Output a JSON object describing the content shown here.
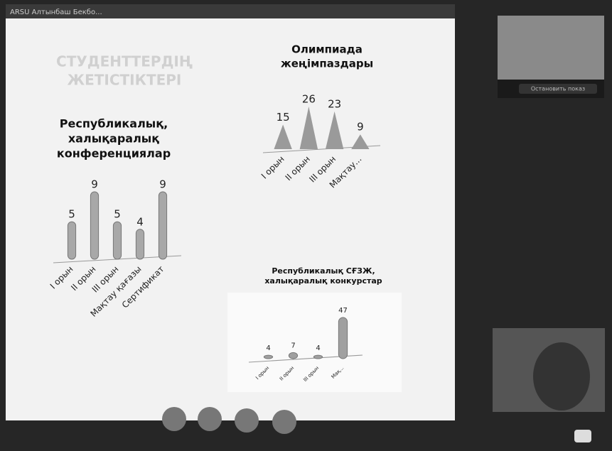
{
  "window": {
    "title": "ARSU Алтынбаш Бекбо..."
  },
  "video": {
    "button": "Остановить показ"
  },
  "slide": {
    "title_line1": "СТУДЕНТТЕРДІҢ",
    "title_line2": "ЖЕТІСТІКТЕРІ"
  },
  "charts": [
    {
      "type": "cylinder",
      "title_lines": [
        "Республикалық,",
        "халықаралық",
        "конференциялар"
      ],
      "color": "#a8a8a8",
      "categories": [
        "I орын",
        "II орын",
        "III орын",
        "Мақтау қағазы",
        "Сертификат"
      ],
      "values": [
        5,
        9,
        5,
        4,
        9
      ]
    },
    {
      "type": "cone",
      "title_lines": [
        "Олимпиада",
        "жеңімпаздары"
      ],
      "color": "#9a9a9a",
      "categories": [
        "I орын",
        "II орын",
        "III орын",
        "Мақтау..."
      ],
      "values": [
        15,
        26,
        23,
        9
      ]
    },
    {
      "type": "cylinder",
      "title_lines": [
        "Республикалық СҒЗЖ,",
        "халықаралық конкурстар"
      ],
      "color": "#a0a0a0",
      "categories": [
        "I орын",
        "II орын",
        "III орын",
        "Мақ..."
      ],
      "values": [
        4,
        7,
        4,
        47
      ]
    }
  ]
}
